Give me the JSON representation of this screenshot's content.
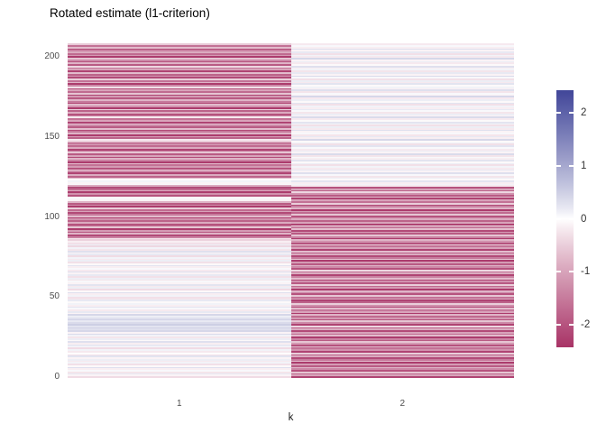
{
  "chart_data": {
    "type": "heatmap",
    "title": "Rotated estimate (l1-criterion)",
    "xlabel": "k",
    "ylabel": "",
    "x_categories": [
      "1",
      "2"
    ],
    "n_rows": 210,
    "y_axis": {
      "tick_labels": [
        "0",
        "50",
        "100",
        "150",
        "200"
      ],
      "tick_values": [
        0,
        50,
        100,
        150,
        200
      ],
      "range": [
        0,
        210
      ]
    },
    "legend": {
      "position": "right",
      "tick_labels": [
        "2",
        "1",
        "0",
        "-1",
        "-2"
      ],
      "tick_values": [
        2,
        1,
        0,
        -1,
        -2
      ]
    },
    "grid": false,
    "color_scale": {
      "low": "#A83366",
      "mid": "#FFFFFF",
      "high": "#414699",
      "limits": [
        -2.42,
        2.42
      ]
    },
    "axis_text_color": "#4D4D4D",
    "title_color": "#000000",
    "background_color": "#FFFFFF",
    "series": [
      {
        "name": "k=1",
        "values": [
          -0.35,
          -0.1,
          0.2,
          -0.25,
          0.05,
          -0.15,
          0.3,
          -0.05,
          -0.3,
          0.1,
          -0.2,
          0.15,
          -0.1,
          0.25,
          -0.3,
          0,
          -0.2,
          0.1,
          -0.35,
          0.05,
          0.2,
          -0.15,
          0.3,
          -0.05,
          0.15,
          -0.25,
          0.1,
          0.35,
          -0.1,
          0.4,
          0.3,
          0.45,
          0.25,
          0.5,
          0.35,
          0.2,
          0.45,
          0.3,
          0.15,
          0.4,
          -0.1,
          0.2,
          -0.2,
          0.05,
          0.25,
          -0.15,
          0.1,
          -0.05,
          0.2,
          -0.25,
          -0.3,
          0.1,
          -0.15,
          0.3,
          -0.05,
          -0.35,
          0.15,
          -0.2,
          0.25,
          -0.1,
          0.05,
          -0.25,
          0.15,
          -0.3,
          0.2,
          -0.1,
          0.3,
          -0.2,
          0.05,
          -0.15,
          0.25,
          -0.05,
          -0.3,
          0.15,
          -0.2,
          0.1,
          -0.35,
          0.2,
          -0.1,
          0.3,
          -0.25,
          0.1,
          -0.4,
          0.15,
          -0.3,
          -0.15,
          -0.45,
          -0.25,
          -1.4,
          -2.1,
          -0.8,
          -1.9,
          -1.1,
          -2.3,
          -0.6,
          -1.6,
          -2.0,
          -0.9,
          -1.8,
          -1.2,
          -2.2,
          -0.7,
          -1.5,
          -2.1,
          -1.0,
          -1.7,
          -0.5,
          -2.3,
          -1.3,
          -1.9,
          -0.8,
          -0.1,
          0.05,
          -0.15,
          -2.0,
          -1.2,
          -2.3,
          -0.9,
          -1.7,
          -2.1,
          -0.9,
          0.05,
          -0.1,
          0.1,
          -0.05,
          -0.8,
          -1.8,
          -0.9,
          -2.2,
          -1.3,
          -0.5,
          -2.0,
          -1.1,
          -1.6,
          -0.7,
          -2.3,
          -1.4,
          -0.8,
          -2.1,
          -1.0,
          -1.9,
          -0.6,
          -1.5,
          -2.2,
          -0.9,
          -1.7,
          -1.2,
          -2.0,
          -0.5,
          -0.2,
          -1.8,
          -1.1,
          -2.3,
          -0.8,
          -1.5,
          -2.1,
          -0.7,
          -1.9,
          -1.3,
          -0.6,
          -2.2,
          -1.0,
          -1.6,
          -0.2,
          -1.4,
          -2.0,
          -0.9,
          -1.8,
          -0.5,
          -2.3,
          -1.2,
          -0.7,
          -2.1,
          -1.5,
          -0.8,
          -1.9,
          -1.1,
          -2.2,
          -0.6,
          -1.7,
          -1.0,
          -2.0,
          -0.3,
          -1.3,
          -2.3,
          -0.8,
          -1.6,
          -0.5,
          -2.1,
          -1.2,
          -1.8,
          -0.7,
          -2.2,
          -1.0,
          -1.5,
          -0.4,
          -1.9,
          -0.8,
          -2.0,
          -1.3,
          -0.6,
          -2.3,
          -1.1,
          -1.7,
          -0.9,
          -1.4,
          -2.1,
          -0.7,
          -1.6,
          -0.55
        ]
      },
      {
        "name": "k=2",
        "values": [
          -2.2,
          -1.0,
          -1.7,
          -0.6,
          -2.0,
          -1.3,
          -0.8,
          -1.9,
          -1.1,
          -2.3,
          -0.7,
          -1.5,
          -2.1,
          -0.9,
          -1.8,
          -0.5,
          -2.2,
          -1.2,
          -1.6,
          -0.8,
          -2.0,
          -1.1,
          -0.6,
          -1.9,
          -1.4,
          -2.3,
          -0.7,
          -1.6,
          -1.0,
          -2.1,
          -0.9,
          -1.8,
          -0.4,
          -2.2,
          -1.3,
          -0.6,
          -2.0,
          -1.1,
          -1.7,
          -0.8,
          -2.3,
          -1.0,
          -1.5,
          -0.7,
          -2.1,
          -1.2,
          -0.5,
          -1.8,
          -2.2,
          -0.9,
          -1.6,
          -0.6,
          -2.0,
          -1.3,
          -0.8,
          -2.3,
          -1.1,
          -1.7,
          -0.5,
          -1.9,
          -1.2,
          -2.1,
          -0.7,
          -1.4,
          -2.2,
          -0.9,
          -1.6,
          -0.4,
          -2.0,
          -1.3,
          -0.8,
          -1.9,
          -1.1,
          -2.3,
          -0.6,
          -1.5,
          -2.1,
          -0.9,
          -1.8,
          -0.7,
          -2.2,
          -1.0,
          -1.6,
          -0.5,
          -2.0,
          -1.2,
          -0.8,
          -2.3,
          -1.4,
          -0.6,
          -1.9,
          -1.1,
          -2.1,
          -0.7,
          -1.5,
          -0.3,
          -2.2,
          -1.0,
          -1.8,
          -0.9,
          -1.3,
          -2.0,
          -0.6,
          -1.7,
          -1.1,
          -2.3,
          -0.8,
          -1.4,
          -2.1,
          -0.5,
          -1.6,
          -1.0,
          -2.2,
          -0.7,
          -1.9,
          -1.2,
          -0.4,
          -1.8,
          -1.0,
          -2.0,
          -0.2,
          0.1,
          -0.15,
          0.25,
          -0.05,
          0.15,
          -0.25,
          0.05,
          0.3,
          -0.1,
          0.2,
          -0.2,
          0.1,
          -0.3,
          0.15,
          -0.05,
          0.25,
          -0.15,
          0.05,
          -0.25,
          0.35,
          -0.1,
          0.15,
          -0.2,
          0.05,
          0.25,
          -0.3,
          0.1,
          -0.05,
          0.4,
          -0.15,
          0.2,
          -0.25,
          0.05,
          -0.1,
          0.3,
          -0.2,
          0.15,
          -0.3,
          0.1,
          0.25,
          -0.05,
          -0.2,
          0.35,
          -0.1,
          0.15,
          -0.25,
          0.05,
          0.2,
          -0.15,
          0.1,
          -0.3,
          0.25,
          -0.05,
          0.15,
          -0.2,
          0.4,
          -0.1,
          0.05,
          -0.25,
          0.3,
          -0.15,
          0.1,
          -0.05,
          0.25,
          -0.2,
          0.15,
          -0.3,
          0.05,
          0.35,
          -0.1,
          0.2,
          -0.25,
          0.1,
          -0.15,
          0.3,
          -0.05,
          -0.2,
          0.15,
          -0.1,
          0.4,
          -0.2,
          0.1,
          -0.3,
          0.2,
          -0.1,
          0.3,
          -0.15,
          0.05,
          -0.2
        ]
      }
    ]
  }
}
